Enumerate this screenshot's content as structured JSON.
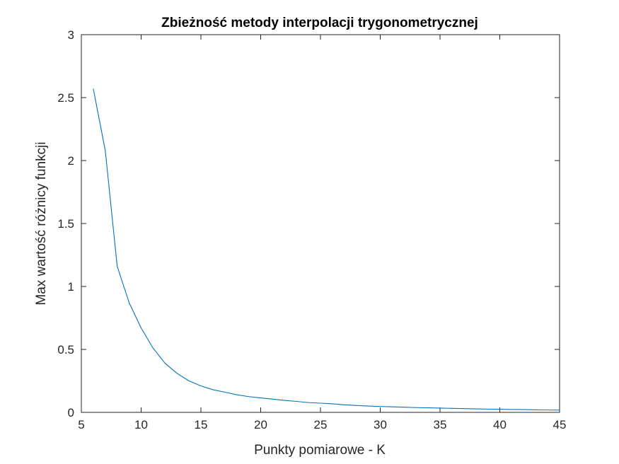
{
  "chart_data": {
    "type": "line",
    "title": "Zbieżność metody interpolacji trygonometrycznej",
    "xlabel": "Punkty pomiarowe - K",
    "ylabel": "Max wartość różnicy funkcji",
    "xlim": [
      5,
      45
    ],
    "ylim": [
      0,
      3
    ],
    "xticks": [
      5,
      10,
      15,
      20,
      25,
      30,
      35,
      40,
      45
    ],
    "xtick_labels": [
      "5",
      "10",
      "15",
      "20",
      "25",
      "30",
      "35",
      "40",
      "45"
    ],
    "yticks": [
      0,
      0.5,
      1,
      1.5,
      2,
      2.5,
      3
    ],
    "ytick_labels": [
      "0",
      "0.5",
      "1",
      "1.5",
      "2",
      "2.5",
      "3"
    ],
    "grid": false,
    "legend": "none",
    "colors": {
      "line": "#0072BD",
      "axes": "#262626",
      "background": "#ffffff"
    },
    "series": [
      {
        "x": [
          6,
          7,
          8,
          9,
          10,
          11,
          12,
          13,
          14,
          15,
          16,
          17,
          18,
          19,
          20,
          21,
          22,
          23,
          24,
          25,
          26,
          27,
          28,
          29,
          30,
          31,
          32,
          33,
          34,
          35,
          36,
          37,
          38,
          39,
          40,
          41,
          42,
          43,
          44,
          45
        ],
        "values": [
          2.57,
          2.08,
          1.16,
          0.87,
          0.67,
          0.51,
          0.39,
          0.31,
          0.25,
          0.21,
          0.18,
          0.16,
          0.14,
          0.125,
          0.115,
          0.105,
          0.095,
          0.087,
          0.078,
          0.073,
          0.068,
          0.06,
          0.055,
          0.05,
          0.047,
          0.044,
          0.041,
          0.038,
          0.036,
          0.034,
          0.032,
          0.03,
          0.028,
          0.026,
          0.025,
          0.023,
          0.022,
          0.02,
          0.019,
          0.018
        ]
      }
    ]
  }
}
